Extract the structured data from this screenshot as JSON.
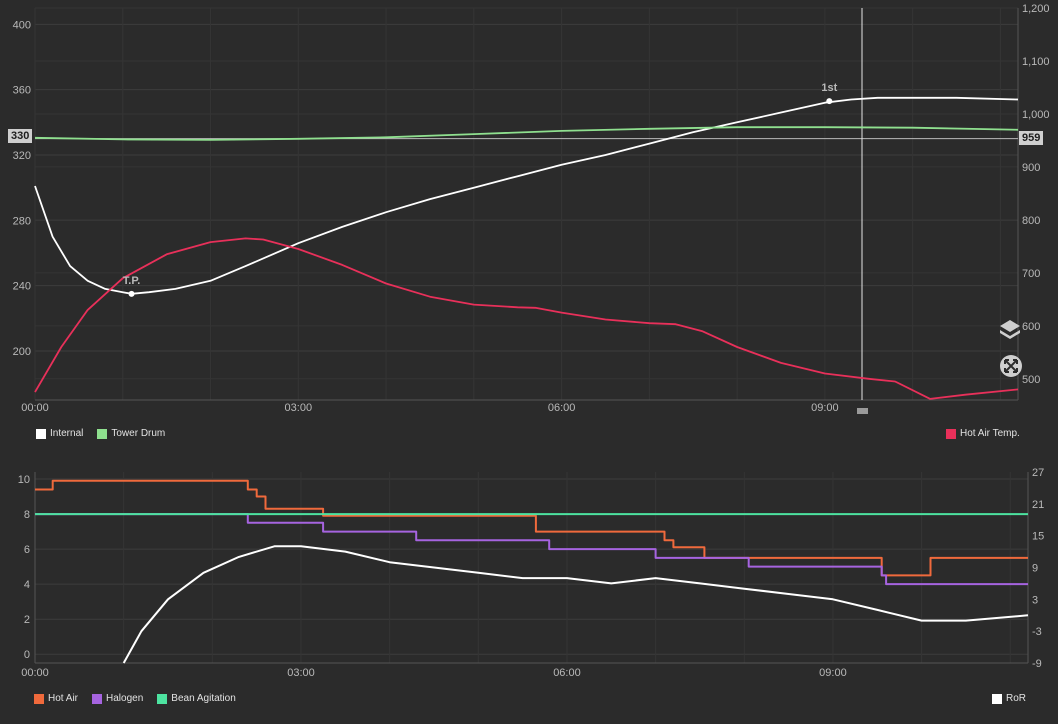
{
  "colors": {
    "background": "#2b2b2b",
    "grid": "#3c3c3c",
    "internal": "#ffffff",
    "tower_drum": "#8fe08f",
    "hot_air_temp": "#e8305a",
    "hot_air": "#f06a3c",
    "halogen": "#a664e0",
    "bean_agitation": "#4de3a0",
    "ror": "#ffffff"
  },
  "top_chart": {
    "left_ticks": [
      "400",
      "360",
      "320",
      "280",
      "240",
      "200"
    ],
    "right_ticks": [
      "1,200",
      "1,100",
      "1,000",
      "900",
      "800",
      "700",
      "600",
      "500"
    ],
    "x_ticks": [
      "00:00",
      "03:00",
      "06:00",
      "09:00"
    ],
    "left_marker": "330",
    "right_marker": "959",
    "cursor_time": "09:24",
    "legend_left": [
      {
        "name": "Internal",
        "color": "#ffffff"
      },
      {
        "name": "Tower Drum",
        "color": "#8fe08f"
      }
    ],
    "legend_right": [
      {
        "name": "Hot Air Temp.",
        "color": "#e8305a"
      }
    ]
  },
  "bottom_chart": {
    "left_ticks": [
      "10",
      "8",
      "6",
      "4",
      "2",
      "0"
    ],
    "right_ticks": [
      "27",
      "21",
      "15",
      "9",
      "3",
      "-3",
      "-9"
    ],
    "x_ticks": [
      "00:00",
      "03:00",
      "06:00",
      "09:00"
    ],
    "legend_left": [
      {
        "name": "Hot Air",
        "color": "#f06a3c"
      },
      {
        "name": "Halogen",
        "color": "#a664e0"
      },
      {
        "name": "Bean Agitation",
        "color": "#4de3a0"
      }
    ],
    "legend_right": [
      {
        "name": "RoR",
        "color": "#ffffff"
      }
    ]
  },
  "chart_data": [
    {
      "type": "line",
      "x_unit": "minutes",
      "xlim": [
        0,
        11.2
      ],
      "ylim_left": [
        170,
        410
      ],
      "ylim_right": [
        460,
        1200
      ],
      "annotations": [
        {
          "label": "T.P.",
          "x": 1.1,
          "y": 235
        },
        {
          "label": "1st",
          "x": 9.05,
          "y": 353
        }
      ],
      "series": [
        {
          "name": "Internal",
          "axis": "left",
          "x": [
            0,
            0.2,
            0.4,
            0.6,
            0.8,
            1.0,
            1.1,
            1.3,
            1.6,
            2.0,
            2.4,
            3.0,
            3.5,
            4.0,
            4.5,
            5.0,
            5.5,
            6.0,
            6.5,
            7.0,
            7.5,
            8.0,
            8.5,
            9.0,
            9.3,
            9.6,
            10.0,
            10.5,
            11.2
          ],
          "y": [
            301,
            270,
            252,
            243,
            238,
            236,
            235,
            236,
            238,
            243,
            252,
            266,
            276,
            285,
            293,
            300,
            307,
            314,
            320,
            327,
            334,
            340,
            346,
            352,
            354,
            355,
            355,
            355,
            354
          ]
        },
        {
          "name": "Tower Drum",
          "axis": "right",
          "x": [
            0,
            1,
            2,
            3,
            4,
            5,
            6,
            7,
            8,
            9,
            10,
            11.2
          ],
          "y": [
            955,
            952,
            951,
            953,
            956,
            962,
            968,
            972,
            975,
            975,
            974,
            970
          ]
        },
        {
          "name": "Hot Air Temp.",
          "axis": "right",
          "x": [
            0,
            0.3,
            0.6,
            1.0,
            1.5,
            2.0,
            2.4,
            2.6,
            3.0,
            3.5,
            4.0,
            4.5,
            5.0,
            5.5,
            5.7,
            6.0,
            6.5,
            7.0,
            7.3,
            7.6,
            8.0,
            8.5,
            9.0,
            9.5,
            9.8,
            10.2,
            10.6,
            11.2
          ],
          "y": [
            475,
            560,
            630,
            690,
            735,
            758,
            765,
            763,
            745,
            715,
            680,
            655,
            640,
            635,
            634,
            625,
            612,
            605,
            603,
            590,
            560,
            530,
            510,
            500,
            495,
            462,
            470,
            480
          ]
        }
      ]
    },
    {
      "type": "line",
      "x_unit": "minutes",
      "xlim": [
        0,
        11.2
      ],
      "ylim_left": [
        -0.5,
        10.4
      ],
      "ylim_right": [
        -9,
        27
      ],
      "series": [
        {
          "name": "Hot Air",
          "axis": "left",
          "step": true,
          "x": [
            0,
            0.2,
            2.4,
            2.5,
            2.6,
            3.25,
            3.6,
            5.65,
            7.1,
            7.2,
            7.55,
            9.55,
            10.1,
            11.2
          ],
          "y": [
            9.4,
            9.9,
            9.4,
            9.0,
            8.3,
            7.9,
            7.9,
            7.0,
            6.5,
            6.1,
            5.5,
            4.5,
            5.5,
            5.5
          ]
        },
        {
          "name": "Halogen",
          "axis": "left",
          "step": true,
          "x": [
            0,
            2.4,
            3.25,
            4.3,
            5.8,
            7.0,
            8.05,
            9.55,
            9.6,
            11.2
          ],
          "y": [
            8.0,
            7.5,
            7.0,
            6.5,
            6.0,
            5.5,
            5.0,
            4.5,
            4.0,
            4.0
          ]
        },
        {
          "name": "Bean Agitation",
          "axis": "left",
          "step": true,
          "x": [
            0,
            11.2
          ],
          "y": [
            8.0,
            8.0
          ]
        },
        {
          "name": "RoR",
          "axis": "right",
          "x": [
            1.0,
            1.2,
            1.5,
            1.9,
            2.3,
            2.7,
            3.0,
            3.5,
            4.0,
            4.5,
            5.0,
            5.5,
            6.0,
            6.5,
            7.0,
            7.5,
            8.0,
            8.5,
            9.0,
            9.5,
            10.0,
            10.5,
            11.2
          ],
          "y": [
            -9,
            -3,
            3,
            8,
            11,
            13,
            13,
            12,
            10,
            9,
            8,
            7,
            7,
            6,
            7,
            6,
            5,
            4,
            3,
            1,
            -1,
            -1,
            0
          ]
        }
      ]
    }
  ]
}
